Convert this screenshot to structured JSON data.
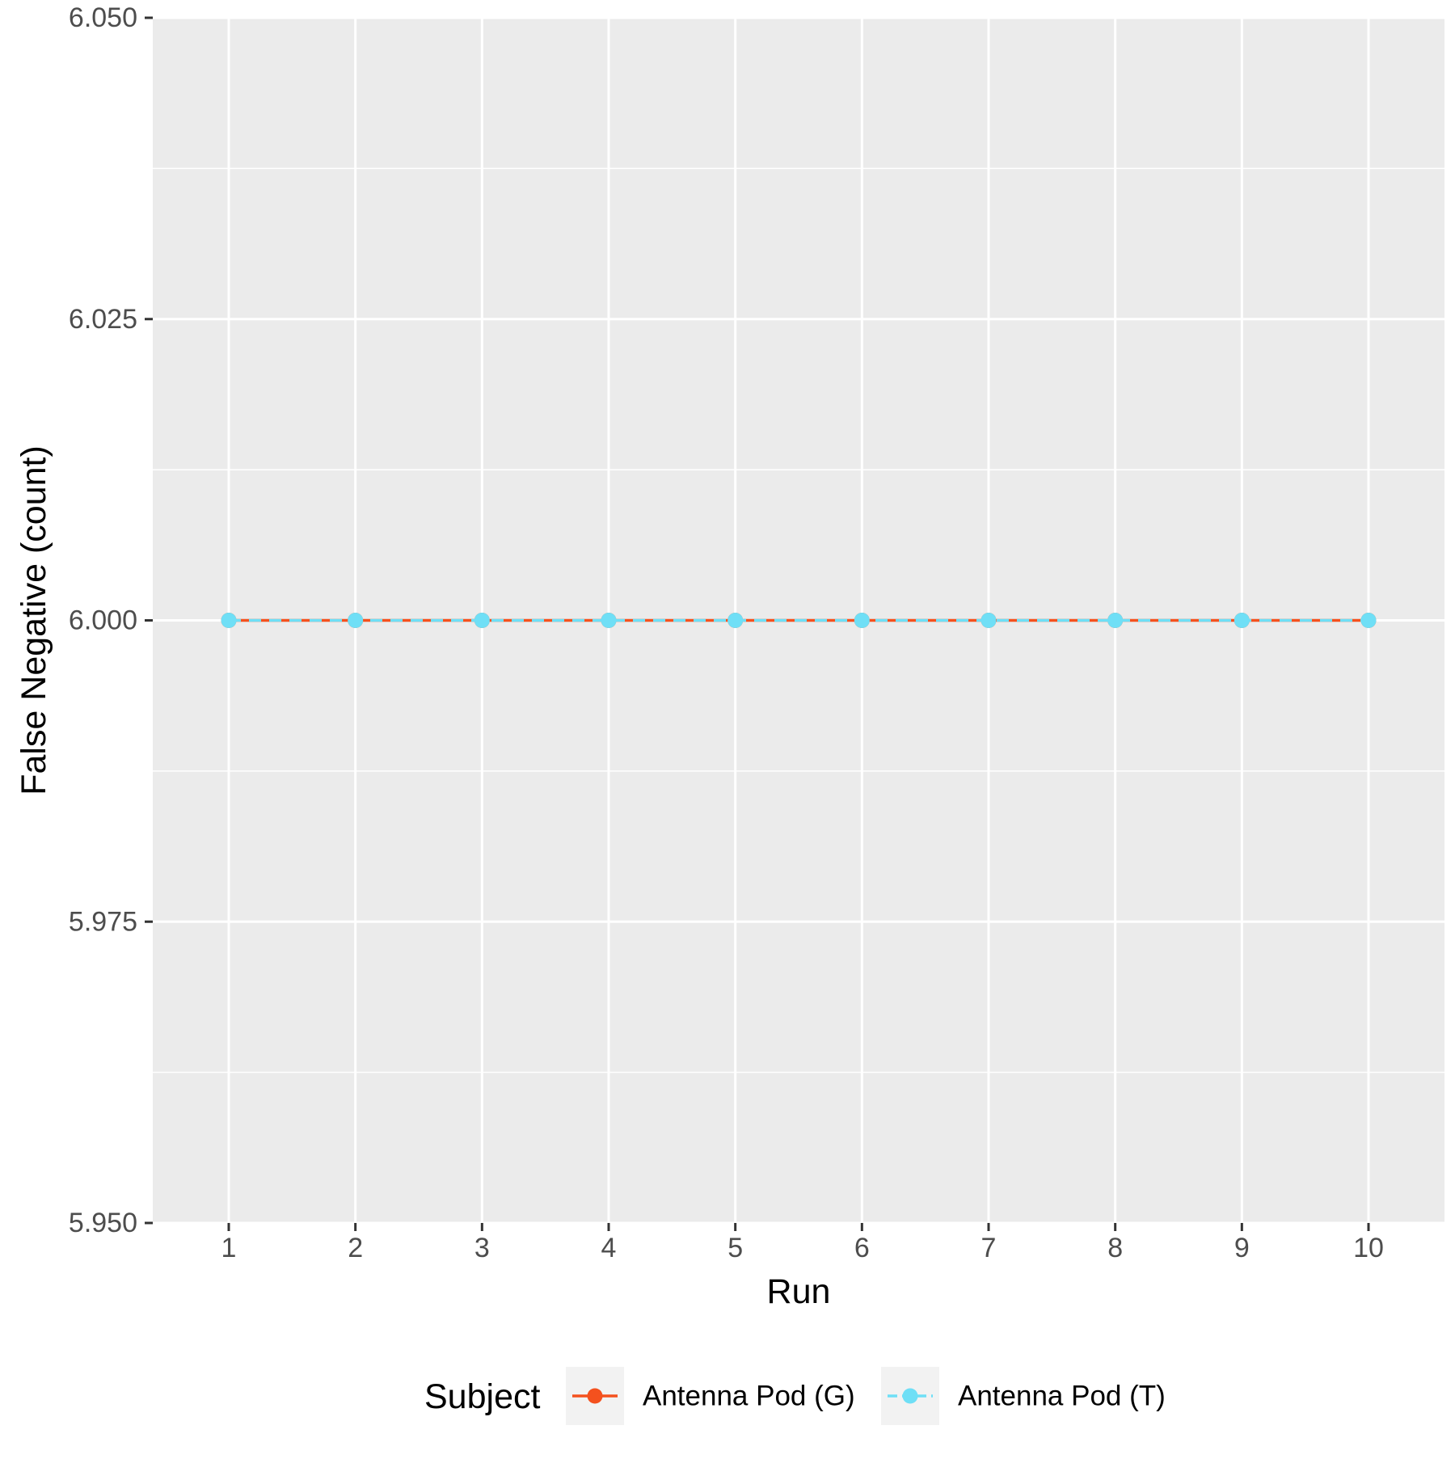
{
  "chart_data": {
    "type": "line",
    "title": "",
    "xlabel": "Run",
    "ylabel": "False Negative (count)",
    "x": [
      1,
      2,
      3,
      4,
      5,
      6,
      7,
      8,
      9,
      10
    ],
    "x_tick_labels": [
      "1",
      "2",
      "3",
      "4",
      "5",
      "6",
      "7",
      "8",
      "9",
      "10"
    ],
    "xlim": [
      0.4,
      10.6
    ],
    "ylim": [
      5.95,
      6.05
    ],
    "y_ticks": [
      5.95,
      5.975,
      6.0,
      6.025,
      6.05
    ],
    "y_tick_labels": [
      "5.950",
      "5.975",
      "6.000",
      "6.025",
      "6.050"
    ],
    "grid": true,
    "legend_position": "bottom",
    "legend_title": "Subject",
    "series": [
      {
        "name": "Antenna Pod (G)",
        "color": "#f4511e",
        "line_style": "solid",
        "values": [
          6,
          6,
          6,
          6,
          6,
          6,
          6,
          6,
          6,
          6
        ]
      },
      {
        "name": "Antenna Pod (T)",
        "color": "#6fdff6",
        "line_style": "dashed",
        "values": [
          6,
          6,
          6,
          6,
          6,
          6,
          6,
          6,
          6,
          6
        ]
      }
    ]
  }
}
